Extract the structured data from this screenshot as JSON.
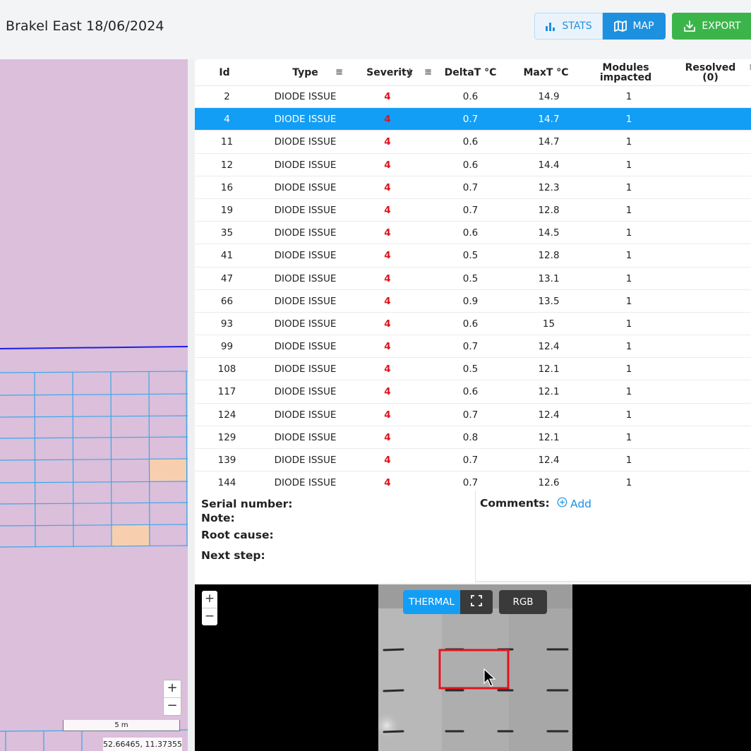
{
  "header": {
    "title": "Brakel East 18/06/2024",
    "stats_label": "STATS",
    "map_label": "MAP",
    "export_label": "EXPORT"
  },
  "table": {
    "columns": {
      "id": "Id",
      "type": "Type",
      "severity": "Severity",
      "deltat": "DeltaT °C",
      "maxt": "MaxT °C",
      "modules_line1": "Modules",
      "modules_line2": "impacted",
      "resolved_line1": "Resolved",
      "resolved_line2": "(0)"
    },
    "selected_id": "4",
    "rows": [
      {
        "id": "2",
        "type": "DIODE ISSUE",
        "severity": "4",
        "deltat": "0.6",
        "maxt": "14.9",
        "modules": "1"
      },
      {
        "id": "4",
        "type": "DIODE ISSUE",
        "severity": "4",
        "deltat": "0.7",
        "maxt": "14.7",
        "modules": "1"
      },
      {
        "id": "11",
        "type": "DIODE ISSUE",
        "severity": "4",
        "deltat": "0.6",
        "maxt": "14.7",
        "modules": "1"
      },
      {
        "id": "12",
        "type": "DIODE ISSUE",
        "severity": "4",
        "deltat": "0.6",
        "maxt": "14.4",
        "modules": "1"
      },
      {
        "id": "16",
        "type": "DIODE ISSUE",
        "severity": "4",
        "deltat": "0.7",
        "maxt": "12.3",
        "modules": "1"
      },
      {
        "id": "19",
        "type": "DIODE ISSUE",
        "severity": "4",
        "deltat": "0.7",
        "maxt": "12.8",
        "modules": "1"
      },
      {
        "id": "35",
        "type": "DIODE ISSUE",
        "severity": "4",
        "deltat": "0.6",
        "maxt": "14.5",
        "modules": "1"
      },
      {
        "id": "41",
        "type": "DIODE ISSUE",
        "severity": "4",
        "deltat": "0.5",
        "maxt": "12.8",
        "modules": "1"
      },
      {
        "id": "47",
        "type": "DIODE ISSUE",
        "severity": "4",
        "deltat": "0.5",
        "maxt": "13.1",
        "modules": "1"
      },
      {
        "id": "66",
        "type": "DIODE ISSUE",
        "severity": "4",
        "deltat": "0.9",
        "maxt": "13.5",
        "modules": "1"
      },
      {
        "id": "93",
        "type": "DIODE ISSUE",
        "severity": "4",
        "deltat": "0.6",
        "maxt": "15",
        "modules": "1"
      },
      {
        "id": "99",
        "type": "DIODE ISSUE",
        "severity": "4",
        "deltat": "0.7",
        "maxt": "12.4",
        "modules": "1"
      },
      {
        "id": "108",
        "type": "DIODE ISSUE",
        "severity": "4",
        "deltat": "0.5",
        "maxt": "12.1",
        "modules": "1"
      },
      {
        "id": "117",
        "type": "DIODE ISSUE",
        "severity": "4",
        "deltat": "0.6",
        "maxt": "12.1",
        "modules": "1"
      },
      {
        "id": "124",
        "type": "DIODE ISSUE",
        "severity": "4",
        "deltat": "0.7",
        "maxt": "12.4",
        "modules": "1"
      },
      {
        "id": "129",
        "type": "DIODE ISSUE",
        "severity": "4",
        "deltat": "0.8",
        "maxt": "12.1",
        "modules": "1"
      },
      {
        "id": "139",
        "type": "DIODE ISSUE",
        "severity": "4",
        "deltat": "0.7",
        "maxt": "12.4",
        "modules": "1"
      },
      {
        "id": "144",
        "type": "DIODE ISSUE",
        "severity": "4",
        "deltat": "0.7",
        "maxt": "12.6",
        "modules": "1"
      }
    ]
  },
  "details": {
    "serial_label": "Serial number:",
    "note_label": "Note:",
    "root_cause_label": "Root cause:",
    "next_step_label": "Next step:",
    "comments_label": "Comments:",
    "add_label": "Add"
  },
  "map": {
    "zoom_in": "+",
    "zoom_out": "−",
    "scale_label": "5 m",
    "coordinates": "52.66465, 11.37355"
  },
  "viewer": {
    "thermal_label": "THERMAL",
    "rgb_label": "RGB",
    "zoom_in": "+",
    "zoom_out": "−"
  },
  "colors": {
    "accent": "#139ef5",
    "export_green": "#3bb54a",
    "severity_red": "#e3121b",
    "map_bg": "#dbbfdb",
    "panel_outline": "#3aa7e8",
    "highlight_panel": "#f7cfae"
  }
}
